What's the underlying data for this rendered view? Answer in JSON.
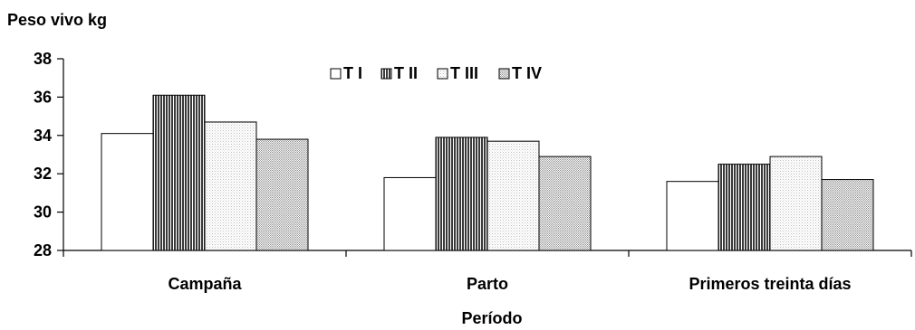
{
  "chart_data": {
    "type": "bar",
    "ylabel": "Peso vivo kg",
    "xlabel": "Período",
    "categories": [
      "Campaña",
      "Parto",
      "Primeros treinta días"
    ],
    "ylim": [
      28,
      38
    ],
    "yticks": [
      28,
      30,
      32,
      34,
      36,
      38
    ],
    "grid": false,
    "legend_position": "top-center",
    "series": [
      {
        "name": "T I",
        "values": [
          34.1,
          31.8,
          31.6
        ],
        "pattern": "white"
      },
      {
        "name": "T II",
        "values": [
          36.1,
          33.9,
          32.5
        ],
        "pattern": "dark-vertical-lines"
      },
      {
        "name": "T III",
        "values": [
          34.7,
          33.7,
          32.9
        ],
        "pattern": "light-dots"
      },
      {
        "name": "T IV",
        "values": [
          33.8,
          32.9,
          31.7
        ],
        "pattern": "medium-dots"
      }
    ]
  }
}
